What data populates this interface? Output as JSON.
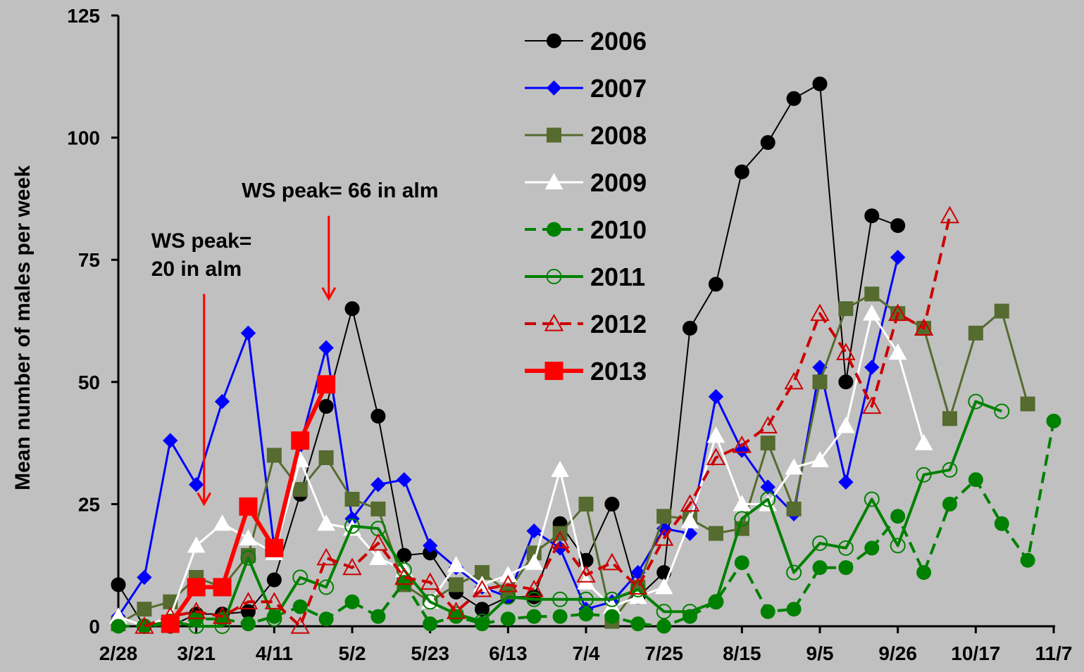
{
  "chart_data": {
    "type": "line",
    "title": "",
    "xlabel": "",
    "ylabel": "Mean number of males per week",
    "ylim": [
      0,
      125
    ],
    "yticks": [
      0,
      25,
      50,
      75,
      100,
      125
    ],
    "x_unit": "weeks from 2/28",
    "xlim": [
      0,
      36
    ],
    "xticks": [
      {
        "x": 0,
        "label": "2/28"
      },
      {
        "x": 3,
        "label": "3/21"
      },
      {
        "x": 6,
        "label": "4/11"
      },
      {
        "x": 9,
        "label": "5/2"
      },
      {
        "x": 12,
        "label": "5/23"
      },
      {
        "x": 15,
        "label": "6/13"
      },
      {
        "x": 18,
        "label": "7/4"
      },
      {
        "x": 21,
        "label": "7/25"
      },
      {
        "x": 24,
        "label": "8/15"
      },
      {
        "x": 27,
        "label": "9/5"
      },
      {
        "x": 30,
        "label": "9/26"
      },
      {
        "x": 33,
        "label": "10/17"
      },
      {
        "x": 36,
        "label": "11/7"
      }
    ],
    "grid": false,
    "legend_position": "top-center",
    "annotations": [
      {
        "lines": [
          "WS peak=",
          "20 in alm"
        ],
        "arrow_x": 3.3,
        "arrow_from": 68,
        "arrow_to": 25
      },
      {
        "lines": [
          "WS peak= 66 in alm"
        ],
        "arrow_x": 8.1,
        "arrow_from": 84,
        "arrow_to": 67
      }
    ],
    "series": [
      {
        "name": "2006",
        "color": "#000000",
        "marker": "circle",
        "fill": "filled",
        "dash": "solid",
        "width": 2,
        "x": [
          0,
          1,
          2,
          3,
          4,
          5,
          6,
          7,
          8,
          9,
          10,
          11,
          12,
          13,
          14,
          15,
          16,
          17,
          18,
          19,
          20,
          21,
          22,
          23,
          24,
          25,
          26,
          27,
          28,
          29,
          30
        ],
        "y": [
          8.5,
          0,
          0,
          2.5,
          2.5,
          3,
          9.5,
          27,
          45,
          65,
          43,
          14.5,
          15,
          7,
          3.5,
          6,
          6,
          21,
          13.5,
          25,
          6,
          11,
          61,
          70,
          93,
          99,
          108,
          111,
          50,
          84,
          82
        ]
      },
      {
        "name": "2007",
        "color": "#0000ff",
        "marker": "diamond",
        "fill": "filled",
        "dash": "solid",
        "width": 3,
        "x": [
          0,
          1,
          2,
          3,
          4,
          5,
          6,
          7,
          8,
          9,
          10,
          11,
          12,
          13,
          14,
          15,
          16,
          17,
          18,
          19,
          20,
          21,
          22,
          23,
          24,
          25,
          26,
          27,
          28,
          29,
          30
        ],
        "y": [
          2,
          10,
          38,
          29,
          46,
          60,
          16,
          37,
          57,
          22,
          29,
          30,
          16.5,
          12,
          8,
          6,
          19.5,
          16,
          3.5,
          5,
          11,
          20,
          19,
          47,
          36,
          28.5,
          23,
          53,
          29.5,
          53,
          75.5
        ]
      },
      {
        "name": "2008",
        "color": "#556b2f",
        "marker": "square",
        "fill": "filled",
        "dash": "solid",
        "width": 3,
        "x": [
          0,
          1,
          2,
          3,
          4,
          5,
          6,
          7,
          8,
          9,
          10,
          11,
          12,
          13,
          14,
          15,
          16,
          17,
          18,
          19,
          20,
          21,
          22,
          23,
          24,
          25,
          26,
          27,
          28,
          29,
          30,
          31,
          32,
          33,
          34,
          35
        ],
        "y": [
          0.5,
          3.5,
          5,
          10,
          8,
          14.5,
          35,
          28,
          34.5,
          26,
          24,
          8.5,
          5,
          8.5,
          11,
          7,
          15,
          19,
          25,
          1,
          8,
          22.5,
          22,
          19,
          20,
          37.5,
          24,
          50,
          65,
          68,
          64,
          61,
          42.5,
          60,
          64.5,
          45.5
        ]
      },
      {
        "name": "2009",
        "color": "#ffffff",
        "marker": "triangle",
        "fill": "filled",
        "dash": "solid",
        "width": 3,
        "x": [
          0,
          1,
          2,
          3,
          4,
          5,
          6,
          7,
          8,
          9,
          10,
          11,
          12,
          13,
          14,
          15,
          16,
          17,
          18,
          19,
          20,
          21,
          22,
          23,
          24,
          25,
          26,
          27,
          28,
          29,
          30,
          31
        ],
        "y": [
          2,
          0,
          2,
          16.5,
          21,
          18,
          15,
          34,
          21,
          20,
          14,
          11.5,
          5,
          12.5,
          8.5,
          10.5,
          13,
          32,
          9,
          4,
          6,
          8,
          21.5,
          39,
          25,
          25,
          32.5,
          34,
          41,
          64,
          56,
          37.5
        ]
      },
      {
        "name": "2010",
        "color": "#008000",
        "marker": "circle",
        "fill": "filled",
        "dash": "dashed",
        "width": 4,
        "x": [
          0,
          1,
          2,
          3,
          4,
          5,
          6,
          7,
          8,
          9,
          10,
          11,
          12,
          13,
          14,
          15,
          16,
          17,
          18,
          19,
          20,
          21,
          22,
          23,
          24,
          25,
          26,
          27,
          28,
          29,
          30,
          31,
          32,
          33,
          34,
          35,
          36
        ],
        "y": [
          0,
          0,
          0.5,
          1.5,
          1.5,
          0.5,
          2,
          4,
          1.5,
          5,
          2,
          9,
          0.5,
          2,
          0.5,
          1.5,
          2,
          2,
          2.5,
          2,
          0.5,
          0,
          2,
          5,
          13,
          3,
          3.5,
          12,
          12,
          16,
          22.5,
          11,
          25,
          30,
          21,
          13.5,
          42
        ]
      },
      {
        "name": "2011",
        "color": "#008000",
        "marker": "circle",
        "fill": "open",
        "dash": "solid",
        "width": 4,
        "x": [
          1,
          2,
          3,
          4,
          5,
          6,
          7,
          8,
          9,
          10,
          11,
          12,
          13,
          14,
          15,
          16,
          17,
          18,
          19,
          20,
          21,
          22,
          23,
          24,
          25,
          26,
          27,
          28,
          29,
          30,
          31,
          32,
          33,
          34
        ],
        "y": [
          0,
          1,
          0,
          0,
          14,
          1.5,
          10,
          8,
          20.5,
          20,
          11.5,
          5,
          2.5,
          1,
          6,
          5.5,
          5.5,
          5.5,
          5.5,
          7.5,
          3,
          3,
          5,
          22,
          26,
          11,
          17,
          16,
          26,
          16.5,
          31,
          32,
          46,
          44
        ]
      },
      {
        "name": "2012",
        "color": "#cc0000",
        "marker": "triangle",
        "fill": "open",
        "dash": "dashed",
        "width": 4,
        "x": [
          1,
          2,
          3,
          4,
          5,
          6,
          7,
          8,
          9,
          10,
          11,
          12,
          13,
          14,
          15,
          16,
          17,
          18,
          19,
          20,
          21,
          22,
          23,
          24,
          25,
          26,
          27,
          28,
          29,
          30,
          31,
          32
        ],
        "y": [
          0,
          2,
          3,
          2,
          5,
          5,
          0,
          14,
          12,
          17,
          10,
          9,
          3,
          7.5,
          8.5,
          7.5,
          17.5,
          10.5,
          13,
          8,
          18,
          25,
          34.5,
          37,
          41,
          50,
          64,
          56,
          45,
          64,
          61,
          84
        ]
      },
      {
        "name": "2013",
        "color": "#ff0000",
        "marker": "square",
        "fill": "filled",
        "dash": "solid",
        "width": 6,
        "x": [
          2,
          3,
          4,
          5,
          6,
          7,
          8
        ],
        "y": [
          0.5,
          8,
          8,
          24.5,
          16,
          38,
          49.5
        ]
      }
    ]
  }
}
